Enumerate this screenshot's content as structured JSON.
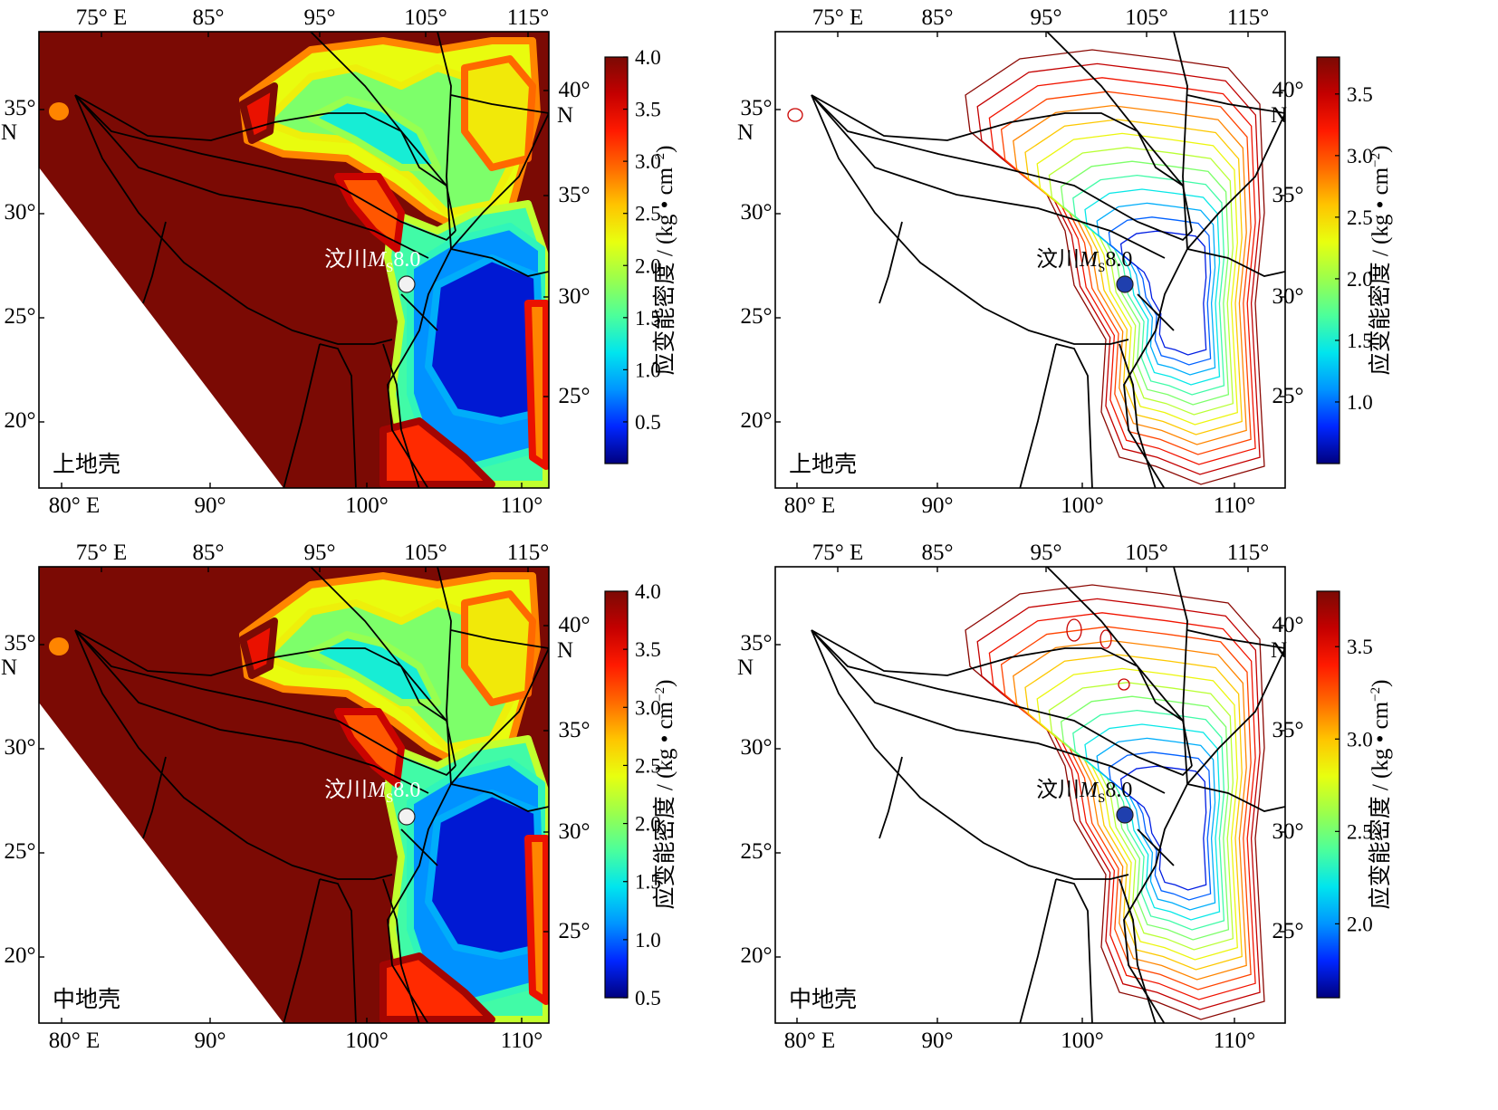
{
  "figure": {
    "panels": [
      {
        "id": "upper-crust-filled",
        "style": "filled",
        "layer_label": "上地壳",
        "quake_label_prefix": "汶川",
        "quake_label_m": "M",
        "quake_label_sub": "S",
        "quake_label_mag": "8.0",
        "quake_marker_color": "#f2f2f2",
        "colorbar_ticks": [
          "0.5",
          "1.0",
          "1.5",
          "2.0",
          "2.5",
          "3.0",
          "3.5",
          "4.0"
        ],
        "colorbar_range": [
          0.1,
          4.0
        ],
        "colorbar_title": "应变能密度 / (kg • cm",
        "colorbar_title_exp": "−2",
        "colorbar_title_end": ")"
      },
      {
        "id": "upper-crust-contour",
        "style": "contour",
        "layer_label": "上地壳",
        "quake_label_prefix": "汶川",
        "quake_label_m": "M",
        "quake_label_sub": "S",
        "quake_label_mag": "8.0",
        "quake_marker_color": "#1f3fae",
        "colorbar_ticks": [
          "1.0",
          "1.5",
          "2.0",
          "2.5",
          "3.0",
          "3.5"
        ],
        "colorbar_range": [
          0.5,
          3.8
        ],
        "colorbar_title": "应变能密度 / (kg • cm",
        "colorbar_title_exp": "−2",
        "colorbar_title_end": ")"
      },
      {
        "id": "middle-crust-filled",
        "style": "filled",
        "layer_label": "中地壳",
        "quake_label_prefix": "汶川",
        "quake_label_m": "M",
        "quake_label_sub": "S",
        "quake_label_mag": "8.0",
        "quake_marker_color": "#f2f2f2",
        "colorbar_ticks": [
          "0.5",
          "1.0",
          "1.5",
          "2.0",
          "2.5",
          "3.0",
          "3.5",
          "4.0"
        ],
        "colorbar_range": [
          0.5,
          4.0
        ],
        "colorbar_title": "应变能密度 / (kg • cm",
        "colorbar_title_exp": "−2",
        "colorbar_title_end": ")"
      },
      {
        "id": "middle-crust-contour",
        "style": "contour",
        "layer_label": "中地壳",
        "quake_label_prefix": "汶川",
        "quake_label_m": "M",
        "quake_label_sub": "S",
        "quake_label_mag": "8.0",
        "quake_marker_color": "#1f3fae",
        "colorbar_ticks": [
          "2.0",
          "2.5",
          "3.0",
          "3.5"
        ],
        "colorbar_range": [
          1.6,
          3.8
        ],
        "colorbar_title": "应变能密度 / (kg • cm",
        "colorbar_title_exp": "−2",
        "colorbar_title_end": ")"
      }
    ],
    "top_ticks": [
      "75° E",
      "85°",
      "95°",
      "105°",
      "115°"
    ],
    "bottom_ticks": [
      "80° E",
      "90°",
      "100°",
      "110°"
    ],
    "left_ticks": [
      {
        "lines": [
          "35°",
          "N"
        ]
      },
      {
        "lines": [
          "30°"
        ]
      },
      {
        "lines": [
          "25°"
        ]
      },
      {
        "lines": [
          "20°"
        ]
      }
    ],
    "right_ticks": [
      {
        "lines": [
          "40°",
          "N"
        ]
      },
      {
        "lines": [
          "35°"
        ]
      },
      {
        "lines": [
          "30°"
        ]
      },
      {
        "lines": [
          "25°"
        ]
      }
    ],
    "colors": {
      "field_high": "#7b0a04",
      "frame": "#000000",
      "fault": "#000000",
      "palette": [
        "#00007f",
        "#0026ff",
        "#0094ff",
        "#00e5ee",
        "#4cff9b",
        "#9bff4c",
        "#e8ff0f",
        "#ffc400",
        "#ff6a00",
        "#ff1a00",
        "#c40000",
        "#7b0a04"
      ]
    }
  }
}
